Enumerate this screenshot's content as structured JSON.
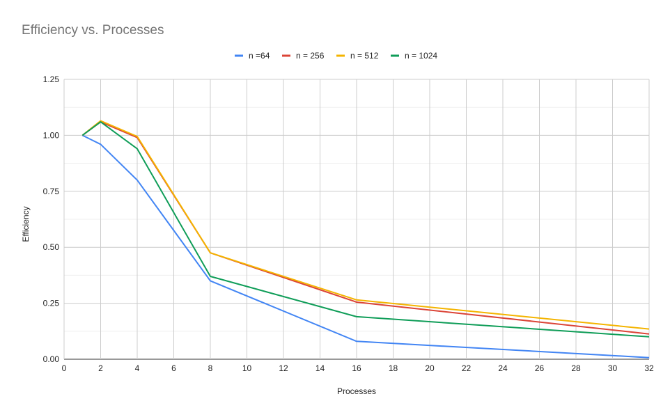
{
  "chart_data": {
    "type": "line",
    "title": "Efficiency vs. Processes",
    "xlabel": "Processes",
    "ylabel": "Efficiency",
    "xlim": [
      0,
      32
    ],
    "ylim": [
      0,
      1.25
    ],
    "x_ticks": [
      "0",
      "2",
      "4",
      "6",
      "8",
      "10",
      "12",
      "14",
      "16",
      "18",
      "20",
      "22",
      "24",
      "26",
      "28",
      "30",
      "32"
    ],
    "y_ticks": [
      "0.00",
      "0.25",
      "0.50",
      "0.75",
      "1.00",
      "1.25"
    ],
    "grid": true,
    "legend_position": "top",
    "x": [
      1,
      2,
      4,
      8,
      16,
      32
    ],
    "series": [
      {
        "name": "n =64",
        "color": "#4285f4",
        "values": [
          1.0,
          0.96,
          0.8,
          0.35,
          0.08,
          0.007
        ]
      },
      {
        "name": "n = 256",
        "color": "#db4437",
        "values": [
          1.0,
          1.06,
          0.99,
          0.475,
          0.255,
          0.113
        ]
      },
      {
        "name": "n = 512",
        "color": "#f4b400",
        "values": [
          1.0,
          1.065,
          0.995,
          0.475,
          0.265,
          0.135
        ]
      },
      {
        "name": "n = 1024",
        "color": "#0f9d58",
        "values": [
          1.0,
          1.06,
          0.94,
          0.37,
          0.19,
          0.1
        ]
      }
    ]
  }
}
